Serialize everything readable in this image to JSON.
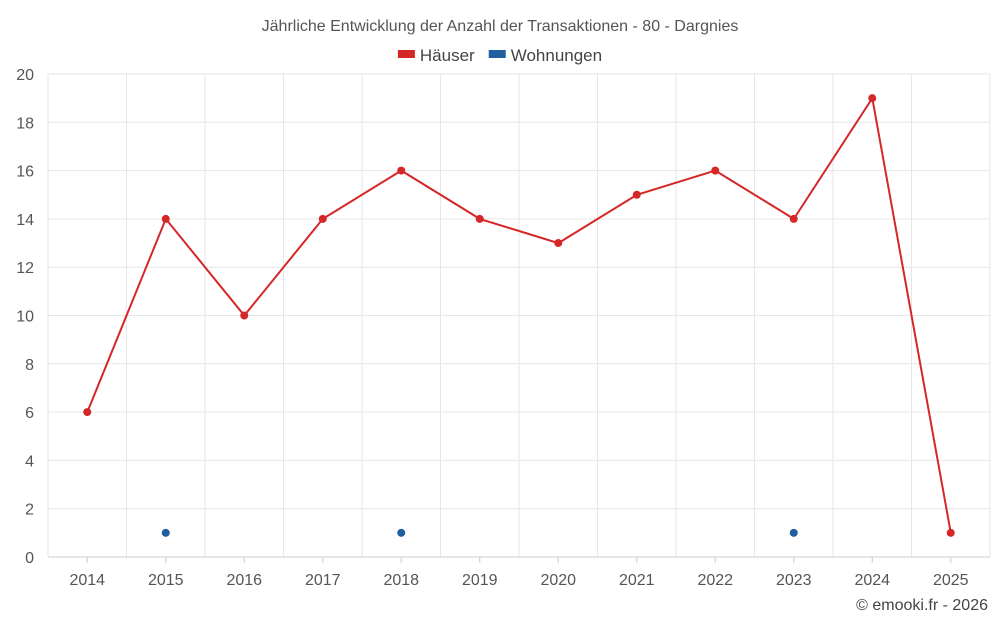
{
  "chart_data": {
    "type": "line",
    "title": "Jährliche Entwicklung der Anzahl der Transaktionen - 80 - Dargnies",
    "categories": [
      "2014",
      "2015",
      "2016",
      "2017",
      "2018",
      "2019",
      "2020",
      "2021",
      "2022",
      "2023",
      "2024",
      "2025"
    ],
    "series": [
      {
        "name": "Häuser",
        "color": "#d62728",
        "values": [
          6,
          14,
          10,
          14,
          16,
          14,
          13,
          15,
          16,
          14,
          19,
          1
        ],
        "line": true
      },
      {
        "name": "Wohnungen",
        "color": "#1f5fa0",
        "values": [
          null,
          1,
          null,
          null,
          1,
          null,
          null,
          null,
          null,
          1,
          null,
          null
        ],
        "line": false
      }
    ],
    "ylim": [
      0,
      20
    ],
    "yticks": [
      0,
      2,
      4,
      6,
      8,
      10,
      12,
      14,
      16,
      18,
      20
    ],
    "grid": true,
    "legend_position": "top-center"
  },
  "credit": "© emooki.fr - 2026"
}
